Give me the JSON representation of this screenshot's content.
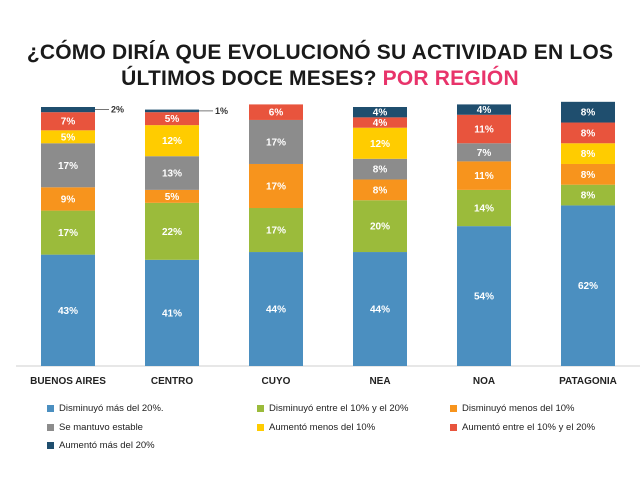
{
  "title": {
    "line1": "¿CÓMO DIRÍA QUE EVOLUCIONÓ SU ACTIVIDAD EN LOS",
    "line2": "ÚLTIMOS DOCE MESES?",
    "accent": "POR REGIÓN",
    "accent_color": "#e8336a"
  },
  "chart_data": {
    "type": "bar",
    "stacked": true,
    "title": "¿CÓMO DIRÍA QUE EVOLUCIONÓ SU ACTIVIDAD EN LOS ÚLTIMOS DOCE MESES? POR REGIÓN",
    "categories": [
      "BUENOS AIRES",
      "CENTRO",
      "CUYO",
      "NEA",
      "NOA",
      "PATAGONIA"
    ],
    "series": [
      {
        "name": "Disminuyó más del 20%.",
        "color": "#4b8fc0",
        "values": [
          43,
          41,
          44,
          44,
          54,
          62
        ]
      },
      {
        "name": "Disminuyó entre el 10% y el 20%",
        "color": "#9bbb3b",
        "values": [
          17,
          22,
          17,
          20,
          14,
          8
        ]
      },
      {
        "name": "Disminuyó menos del 10%",
        "color": "#f7941d",
        "values": [
          9,
          5,
          17,
          8,
          11,
          8
        ]
      },
      {
        "name": "Se mantuvo estable",
        "color": "#8c8c8c",
        "values": [
          17,
          13,
          17,
          8,
          7,
          0
        ]
      },
      {
        "name": "Aumentó menos del 10%",
        "color": "#ffcc00",
        "values": [
          5,
          12,
          0,
          12,
          0,
          8
        ]
      },
      {
        "name": "Aumentó entre el 10% y el 20%",
        "color": "#e8543d",
        "values": [
          7,
          5,
          6,
          4,
          11,
          8
        ]
      },
      {
        "name": "Aumentó más del 20%",
        "color": "#1f4e6e",
        "values": [
          2,
          1,
          0,
          4,
          4,
          8
        ]
      }
    ],
    "labels": [
      [
        "43%",
        "41%",
        "44%",
        "44%",
        "54%",
        "62%"
      ],
      [
        "17%",
        "22%",
        "17%",
        "20%",
        "14%",
        "8%"
      ],
      [
        "9%",
        "5%",
        "17%",
        "8%",
        "11%",
        "8%"
      ],
      [
        "17%",
        "13%",
        "17%",
        "8%",
        "7%",
        ""
      ],
      [
        "5%",
        "12%",
        "",
        "12%",
        "",
        "8%"
      ],
      [
        "7%",
        "5%",
        "6%",
        "4%",
        "11%",
        "8%"
      ],
      [
        "2%",
        "1%",
        "",
        "4%",
        "4%",
        "8%"
      ]
    ],
    "ylim": [
      0,
      100
    ],
    "xlabel": "",
    "ylabel": "",
    "grid": false,
    "legend_position": "bottom"
  }
}
